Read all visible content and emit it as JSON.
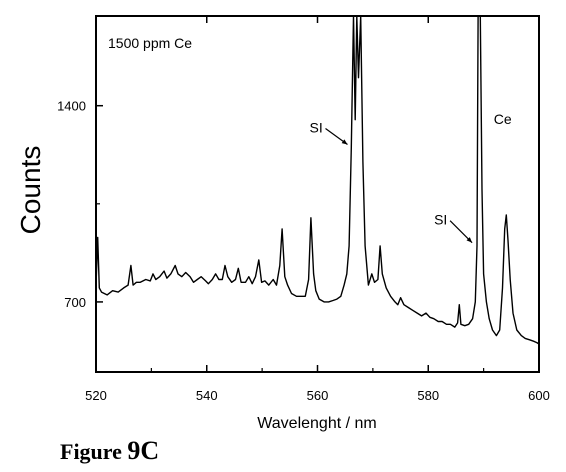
{
  "chart_data": {
    "type": "line",
    "xlabel": "Wavelenght / nm",
    "ylabel": "Counts",
    "xlim": [
      520,
      600
    ],
    "ylim": [
      450,
      1720
    ],
    "xticks": [
      520,
      540,
      560,
      580,
      600
    ],
    "yticks": [
      700,
      1400
    ],
    "legend_text": "1500 ppm Ce",
    "annotations": [
      {
        "text": "SI",
        "x": 566.5,
        "y": 1290
      },
      {
        "text": "SI",
        "x": 589.0,
        "y": 940
      },
      {
        "text": "Ce",
        "x": 594.0,
        "y": 1150
      }
    ],
    "series": [
      {
        "values": [
          [
            520,
            760
          ],
          [
            520.3,
            930
          ],
          [
            520.6,
            750
          ],
          [
            521,
            735
          ],
          [
            522,
            725
          ],
          [
            523,
            740
          ],
          [
            524,
            735
          ],
          [
            525,
            750
          ],
          [
            525.8,
            760
          ],
          [
            526.3,
            830
          ],
          [
            526.7,
            760
          ],
          [
            527.3,
            770
          ],
          [
            528,
            770
          ],
          [
            529,
            780
          ],
          [
            529.8,
            775
          ],
          [
            530.3,
            800
          ],
          [
            530.8,
            780
          ],
          [
            531.5,
            790
          ],
          [
            532.3,
            810
          ],
          [
            532.8,
            785
          ],
          [
            533.5,
            800
          ],
          [
            534.3,
            830
          ],
          [
            534.8,
            800
          ],
          [
            535.5,
            790
          ],
          [
            536.2,
            805
          ],
          [
            537,
            790
          ],
          [
            537.6,
            770
          ],
          [
            538.3,
            780
          ],
          [
            539,
            790
          ],
          [
            539.8,
            775
          ],
          [
            540.3,
            765
          ],
          [
            541,
            780
          ],
          [
            541.6,
            800
          ],
          [
            542.2,
            780
          ],
          [
            542.8,
            780
          ],
          [
            543.3,
            830
          ],
          [
            543.8,
            790
          ],
          [
            544.5,
            770
          ],
          [
            545.2,
            780
          ],
          [
            545.7,
            820
          ],
          [
            546.2,
            770
          ],
          [
            547,
            770
          ],
          [
            547.6,
            790
          ],
          [
            548.2,
            765
          ],
          [
            548.8,
            790
          ],
          [
            549.4,
            850
          ],
          [
            549.9,
            770
          ],
          [
            550.5,
            775
          ],
          [
            551.2,
            760
          ],
          [
            552,
            780
          ],
          [
            552.6,
            760
          ],
          [
            553.2,
            830
          ],
          [
            553.6,
            960
          ],
          [
            554.1,
            790
          ],
          [
            554.6,
            760
          ],
          [
            555.3,
            730
          ],
          [
            556.2,
            720
          ],
          [
            557,
            720
          ],
          [
            557.8,
            720
          ],
          [
            558.4,
            780
          ],
          [
            558.8,
            1000
          ],
          [
            559.3,
            800
          ],
          [
            559.7,
            740
          ],
          [
            560.3,
            710
          ],
          [
            561.2,
            700
          ],
          [
            562,
            700
          ],
          [
            562.8,
            705
          ],
          [
            563.5,
            710
          ],
          [
            564.2,
            720
          ],
          [
            564.8,
            760
          ],
          [
            565.3,
            800
          ],
          [
            565.7,
            900
          ],
          [
            566.1,
            1250
          ],
          [
            566.5,
            1720
          ],
          [
            566.8,
            1350
          ],
          [
            567.1,
            1720
          ],
          [
            567.4,
            1500
          ],
          [
            567.8,
            1720
          ],
          [
            568.2,
            1200
          ],
          [
            568.6,
            900
          ],
          [
            569.2,
            760
          ],
          [
            569.8,
            800
          ],
          [
            570.3,
            770
          ],
          [
            570.9,
            780
          ],
          [
            571.3,
            900
          ],
          [
            571.7,
            800
          ],
          [
            572.4,
            750
          ],
          [
            573.2,
            720
          ],
          [
            574,
            700
          ],
          [
            574.5,
            690
          ],
          [
            575,
            715
          ],
          [
            575.6,
            690
          ],
          [
            576.4,
            680
          ],
          [
            577.2,
            670
          ],
          [
            578,
            660
          ],
          [
            578.8,
            650
          ],
          [
            579.6,
            660
          ],
          [
            580.3,
            645
          ],
          [
            581,
            640
          ],
          [
            581.8,
            630
          ],
          [
            582.5,
            630
          ],
          [
            583.3,
            620
          ],
          [
            584,
            620
          ],
          [
            584.8,
            610
          ],
          [
            585.3,
            625
          ],
          [
            585.6,
            690
          ],
          [
            585.9,
            620
          ],
          [
            586.6,
            615
          ],
          [
            587.3,
            620
          ],
          [
            588,
            640
          ],
          [
            588.5,
            700
          ],
          [
            588.8,
            900
          ],
          [
            589,
            1720
          ],
          [
            589.4,
            1720
          ],
          [
            589.7,
            1100
          ],
          [
            590,
            800
          ],
          [
            590.5,
            700
          ],
          [
            591,
            640
          ],
          [
            591.6,
            600
          ],
          [
            592.3,
            580
          ],
          [
            592.9,
            600
          ],
          [
            593.4,
            750
          ],
          [
            593.8,
            960
          ],
          [
            594.1,
            1010
          ],
          [
            594.4,
            920
          ],
          [
            594.8,
            780
          ],
          [
            595.3,
            660
          ],
          [
            596,
            600
          ],
          [
            596.8,
            580
          ],
          [
            597.5,
            570
          ],
          [
            598.3,
            565
          ],
          [
            599,
            560
          ],
          [
            599.6,
            555
          ],
          [
            600,
            550
          ]
        ]
      }
    ]
  },
  "caption": {
    "prefix": "Figure ",
    "number": "9C"
  }
}
